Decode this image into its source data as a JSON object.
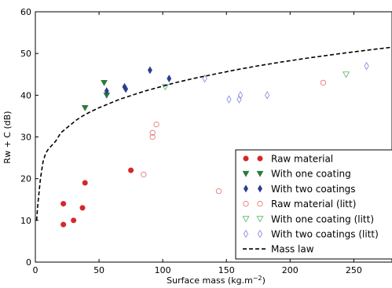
{
  "chart_data": {
    "type": "scatter",
    "xlabel": "Surface mass (kg.m",
    "xlabel_sup": "−2",
    "xlabel_close": ")",
    "ylabel": "Rw + C (dB)",
    "xlim": [
      0,
      280
    ],
    "ylim": [
      0,
      60
    ],
    "xticks": [
      0,
      50,
      100,
      150,
      200,
      250
    ],
    "yticks": [
      0,
      10,
      20,
      30,
      40,
      50,
      60
    ],
    "legend_placement": "lower-right",
    "series": [
      {
        "name": "Raw material",
        "marker": "circle",
        "filled": true,
        "color": "#d62728",
        "points": [
          [
            22,
            14
          ],
          [
            22,
            9
          ],
          [
            30,
            10
          ],
          [
            37,
            13
          ],
          [
            39,
            19
          ],
          [
            75,
            22
          ]
        ]
      },
      {
        "name": "With one coating",
        "marker": "triangle-down",
        "filled": true,
        "color": "#2a7a3a",
        "points": [
          [
            39,
            37
          ],
          [
            54,
            43
          ],
          [
            56,
            40
          ]
        ]
      },
      {
        "name": "With two coatings",
        "marker": "thin-diamond",
        "filled": true,
        "color": "#2b3f8f",
        "points": [
          [
            56,
            41
          ],
          [
            70,
            42
          ],
          [
            71,
            41.5
          ],
          [
            90,
            46
          ],
          [
            105,
            44
          ]
        ]
      },
      {
        "name": "Raw material (litt)",
        "marker": "circle",
        "filled": false,
        "color": "#e87a7a",
        "points": [
          [
            85,
            21
          ],
          [
            92,
            31
          ],
          [
            92,
            30
          ],
          [
            95,
            33
          ],
          [
            144,
            17
          ],
          [
            226,
            43
          ]
        ]
      },
      {
        "name": "With one coating (litt)",
        "marker": "triangle-down",
        "filled": false,
        "color": "#66bb77",
        "points": [
          [
            102,
            42
          ],
          [
            244,
            45
          ]
        ]
      },
      {
        "name": "With two coatings (litt)",
        "marker": "thin-diamond",
        "filled": false,
        "color": "#8e8ee0",
        "points": [
          [
            133,
            44
          ],
          [
            152,
            39
          ],
          [
            160,
            39
          ],
          [
            161,
            40
          ],
          [
            182,
            40
          ],
          [
            260,
            47
          ]
        ]
      },
      {
        "name": "Mass law",
        "line_style": "dashed",
        "color": "#000000",
        "points": [
          [
            1,
            10
          ],
          [
            2,
            14
          ],
          [
            3,
            17
          ],
          [
            4,
            20
          ],
          [
            5,
            22
          ],
          [
            6,
            24
          ],
          [
            8,
            26
          ],
          [
            10,
            27
          ],
          [
            13,
            28
          ],
          [
            16,
            29
          ],
          [
            20,
            31
          ],
          [
            24,
            32
          ],
          [
            28,
            33
          ],
          [
            32,
            34
          ],
          [
            37,
            35
          ],
          [
            43,
            36
          ],
          [
            50,
            37
          ],
          [
            58,
            38
          ],
          [
            66,
            39
          ],
          [
            76,
            40
          ],
          [
            86,
            41
          ],
          [
            98,
            42
          ],
          [
            110,
            43
          ],
          [
            124,
            44
          ],
          [
            140,
            45
          ],
          [
            156,
            46
          ],
          [
            174,
            47
          ],
          [
            194,
            48
          ],
          [
            216,
            49
          ],
          [
            240,
            50
          ],
          [
            266,
            51
          ],
          [
            280,
            51.5
          ]
        ]
      }
    ]
  }
}
